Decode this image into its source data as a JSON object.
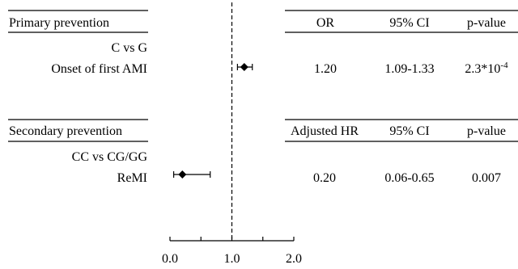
{
  "chart_data": {
    "type": "forest",
    "xlim": [
      0.0,
      2.0
    ],
    "ticks": [
      0.0,
      1.0,
      2.0
    ],
    "tick_labels": [
      "0.0",
      "1.0",
      "2.0"
    ],
    "reference_line": 1.0,
    "sections": [
      {
        "title": "Primary prevention",
        "columns": [
          "OR",
          "95% CI",
          "p-value"
        ],
        "comparison": "C vs G",
        "outcome": "Onset of first AMI",
        "estimate": 1.2,
        "ci": [
          1.09,
          1.33
        ],
        "estimate_text": "1.20",
        "ci_text": "1.09-1.33",
        "p_text": "2.3*10",
        "p_exp": "-4"
      },
      {
        "title": "Secondary prevention",
        "columns": [
          "Adjusted HR",
          "95% CI",
          "p-value"
        ],
        "comparison": "CC vs CG/GG",
        "outcome": "ReMI",
        "estimate": 0.2,
        "ci": [
          0.06,
          0.65
        ],
        "estimate_text": "0.20",
        "ci_text": "0.06-0.65",
        "p_text": "0.007",
        "p_exp": ""
      }
    ]
  }
}
